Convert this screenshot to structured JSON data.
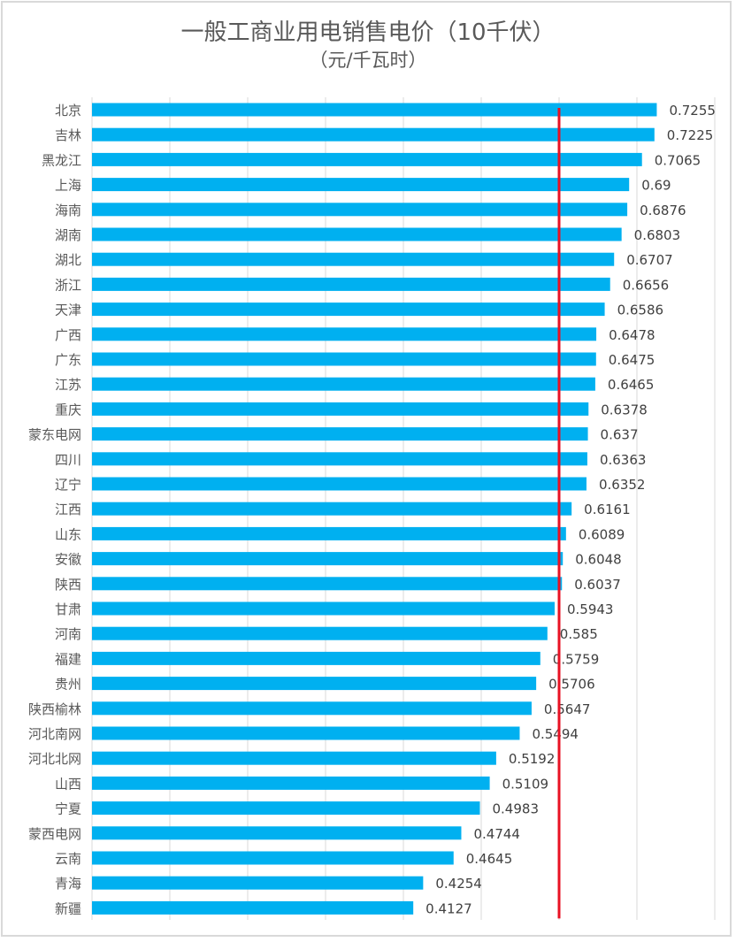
{
  "chart_data": {
    "type": "bar",
    "orientation": "horizontal",
    "title": "一般工商业用电销售电价（10千伏）",
    "subtitle": "（元/千瓦时）",
    "xlabel": "",
    "ylabel": "",
    "xlim": [
      0,
      0.8
    ],
    "grid_step": 0.1,
    "grid": true,
    "reference_line": {
      "value": 0.6,
      "color": "#e81123"
    },
    "bar_color": "#00b0f0",
    "categories": [
      "北京",
      "吉林",
      "黑龙江",
      "上海",
      "海南",
      "湖南",
      "湖北",
      "浙江",
      "天津",
      "广西",
      "广东",
      "江苏",
      "重庆",
      "蒙东电网",
      "四川",
      "辽宁",
      "江西",
      "山东",
      "安徽",
      "陕西",
      "甘肃",
      "河南",
      "福建",
      "贵州",
      "陕西榆林",
      "河北南网",
      "河北北网",
      "山西",
      "宁夏",
      "蒙西电网",
      "云南",
      "青海",
      "新疆"
    ],
    "values": [
      0.7255,
      0.7225,
      0.7065,
      0.69,
      0.6876,
      0.6803,
      0.6707,
      0.6656,
      0.6586,
      0.6478,
      0.6475,
      0.6465,
      0.6378,
      0.637,
      0.6363,
      0.6352,
      0.6161,
      0.6089,
      0.6048,
      0.6037,
      0.5943,
      0.585,
      0.5759,
      0.5706,
      0.5647,
      0.5494,
      0.5192,
      0.5109,
      0.4983,
      0.4744,
      0.4645,
      0.4254,
      0.4127
    ],
    "data_labels": [
      "0.7255",
      "0.7225",
      "0.7065",
      "0.69",
      "0.6876",
      "0.6803",
      "0.6707",
      "0.6656",
      "0.6586",
      "0.6478",
      "0.6475",
      "0.6465",
      "0.6378",
      "0.637",
      "0.6363",
      "0.6352",
      "0.6161",
      "0.6089",
      "0.6048",
      "0.6037",
      "0.5943",
      "0.585",
      "0.5759",
      "0.5706",
      "0.5647",
      "0.5494",
      "0.5192",
      "0.5109",
      "0.4983",
      "0.4744",
      "0.4645",
      "0.4254",
      "0.4127"
    ]
  }
}
